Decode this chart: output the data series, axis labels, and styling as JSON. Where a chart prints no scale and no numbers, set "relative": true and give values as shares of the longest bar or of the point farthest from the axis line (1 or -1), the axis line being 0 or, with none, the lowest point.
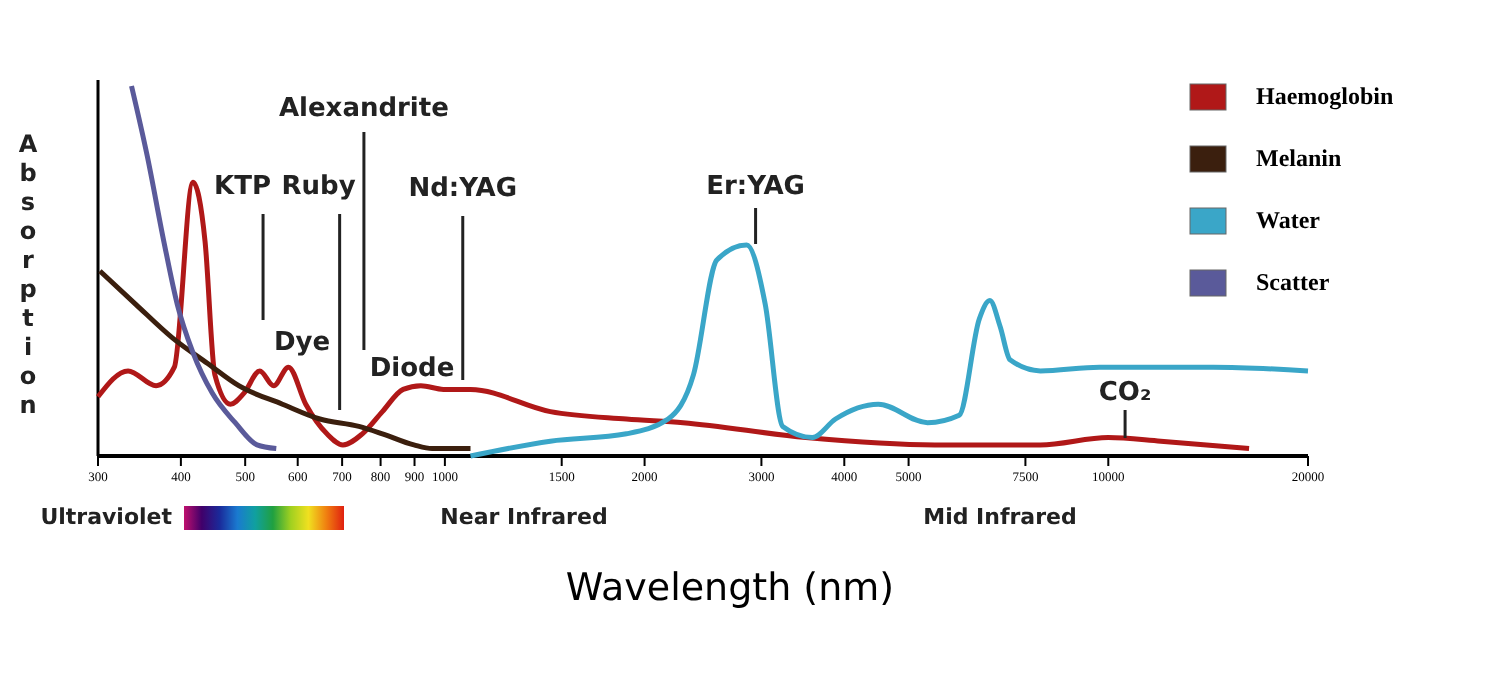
{
  "chart_data": {
    "type": "line",
    "relative": true,
    "xlabel": "Wavelength (nm)",
    "ylabel": "Absorption",
    "xlim": [
      300,
      20000
    ],
    "xticks": [
      300,
      400,
      500,
      600,
      700,
      800,
      900,
      1000,
      1500,
      2000,
      3000,
      4000,
      5000,
      7500,
      10000,
      20000
    ],
    "legend": "right",
    "log": "x",
    "marker": "none",
    "line_style": "solid",
    "series": [
      {
        "name": "Haemoglobin",
        "color": "#b01818",
        "x": [
          300,
          333,
          367,
          391,
          417,
          435,
          450,
          475,
          498,
          526,
          552,
          581,
          617,
          664,
          702,
          751,
          805,
          865,
          920,
          995,
          1093,
          1442,
          1878,
          2286,
          3500,
          5480,
          7900,
          10000,
          12000,
          16300
        ],
        "values": [
          0.16,
          0.23,
          0.19,
          0.24,
          0.74,
          0.58,
          0.22,
          0.14,
          0.17,
          0.23,
          0.19,
          0.24,
          0.14,
          0.06,
          0.03,
          0.06,
          0.12,
          0.18,
          0.19,
          0.18,
          0.18,
          0.12,
          0.1,
          0.09,
          0.05,
          0.03,
          0.03,
          0.05,
          0.04,
          0.02
        ]
      },
      {
        "name": "Melanin",
        "color": "#3b1f0e",
        "x": [
          302,
          342,
          388,
          439,
          489,
          569,
          648,
          742,
          805,
          898,
          957,
          1000,
          1093
        ],
        "values": [
          0.5,
          0.41,
          0.32,
          0.25,
          0.19,
          0.14,
          0.1,
          0.08,
          0.06,
          0.03,
          0.02,
          0.02,
          0.02
        ]
      },
      {
        "name": "Water",
        "color": "#3aa6c8",
        "x": [
          1093,
          1442,
          1878,
          2170,
          2370,
          2570,
          2850,
          3040,
          3230,
          3580,
          3880,
          4500,
          5340,
          5960,
          6390,
          6630,
          6870,
          7110,
          7900,
          9700,
          14400,
          20000
        ],
        "values": [
          0,
          0.04,
          0.06,
          0.1,
          0.22,
          0.53,
          0.57,
          0.41,
          0.08,
          0.05,
          0.1,
          0.14,
          0.09,
          0.11,
          0.37,
          0.42,
          0.35,
          0.26,
          0.23,
          0.24,
          0.24,
          0.23
        ]
      },
      {
        "name": "Scatter",
        "color": "#5a5a9a",
        "x": [
          337,
          356,
          377,
          395,
          417,
          446,
          483,
          521,
          557
        ],
        "values": [
          1,
          0.81,
          0.58,
          0.41,
          0.28,
          0.17,
          0.09,
          0.03,
          0.02
        ]
      }
    ],
    "ref_lines": [
      {
        "axis": "x",
        "value": 532,
        "label": "KTP"
      },
      {
        "axis": "x",
        "value": 694,
        "label": "Ruby"
      },
      {
        "axis": "x",
        "value": 755,
        "label": "Alexandrite"
      },
      {
        "axis": "x",
        "value": 1064,
        "label": "Nd:YAG"
      },
      {
        "axis": "x",
        "value": 2940,
        "label": "Er:YAG"
      },
      {
        "axis": "x",
        "value": 10600,
        "label": "CO₂"
      }
    ],
    "annotations": [
      "Dye",
      "Diode",
      "Ultraviolet",
      "Near Infrared",
      "Mid Infrared"
    ]
  }
}
